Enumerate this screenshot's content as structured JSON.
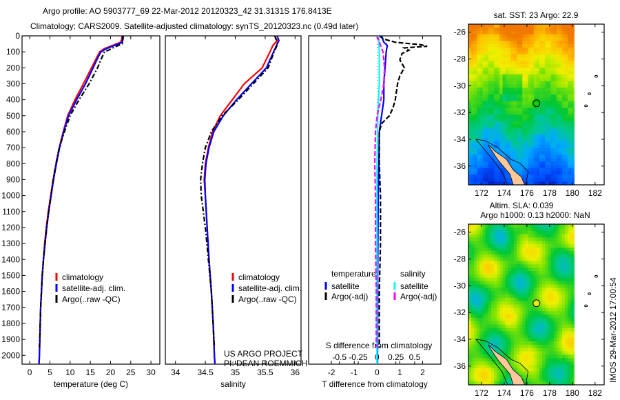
{
  "title": {
    "line1": "Argo profile: AO 5903777_69 22-Mar-2012 20120323_42 31.3131S 176.8413E",
    "line2": "Climatology: CARS2009. Satellite-adjusted climatology: synTS_20120323.nc (0.49d later)"
  },
  "colors": {
    "climatology": "#ff0000",
    "satellite": "#0000ff",
    "argo": "#000000",
    "sal_satellite": "#00ffff",
    "sal_argo": "#ff00ff",
    "land": "#ffc89a"
  },
  "chart_data": [
    {
      "type": "line",
      "id": "temperature",
      "xlabel": "temperature (deg C)",
      "ylabel": "",
      "xlim": [
        -1.9,
        32.2
      ],
      "ylim": [
        2055,
        0
      ],
      "xticks": [
        0,
        5,
        10,
        15,
        20,
        25,
        30
      ],
      "yticks": [
        0,
        100,
        200,
        300,
        400,
        500,
        600,
        700,
        800,
        900,
        1000,
        1100,
        1200,
        1300,
        1400,
        1500,
        1600,
        1700,
        1800,
        1900,
        2000
      ],
      "legend": [
        "climatology",
        "satellite-adj. clim.",
        "Argo(..raw -QC)"
      ],
      "series": [
        {
          "name": "climatology",
          "depth": [
            0,
            20,
            40,
            60,
            80,
            100,
            150,
            200,
            300,
            400,
            500,
            600,
            700,
            800,
            900,
            1000,
            1100,
            1200,
            1300,
            1400,
            1500,
            1600,
            1700,
            1800,
            1900,
            2000,
            2055
          ],
          "values": [
            22.8,
            22.8,
            22.5,
            20.5,
            18.5,
            17.3,
            16.3,
            15.3,
            13.3,
            11.2,
            9.4,
            8.3,
            7.3,
            6.5,
            5.8,
            5.2,
            4.6,
            4.1,
            3.7,
            3.4,
            3.1,
            2.9,
            2.7,
            2.6,
            2.5,
            2.4,
            2.3
          ]
        },
        {
          "name": "satellite-adj. clim.",
          "depth": [
            0,
            20,
            40,
            60,
            80,
            100,
            150,
            200,
            300,
            400,
            500,
            600,
            700,
            800,
            900,
            1000,
            1100,
            1200,
            1300,
            1400,
            1500,
            1600,
            1700,
            1800,
            1900,
            2000,
            2055
          ],
          "values": [
            23.2,
            23.1,
            22.9,
            21.0,
            19.0,
            17.6,
            16.6,
            15.7,
            13.8,
            11.6,
            9.6,
            8.4,
            7.4,
            6.6,
            5.9,
            5.3,
            4.7,
            4.2,
            3.8,
            3.4,
            3.1,
            2.9,
            2.7,
            2.6,
            2.5,
            2.4,
            2.3
          ]
        },
        {
          "name": "Argo(..raw -QC)",
          "depth": [
            0,
            50,
            70,
            90,
            100,
            150,
            200,
            300,
            400,
            500,
            600,
            700,
            800,
            900,
            1000,
            1100,
            1200,
            1300,
            1400,
            1500,
            1600,
            1700,
            1800,
            1900,
            1950
          ],
          "values": [
            23.0,
            22.9,
            21.0,
            19.5,
            18.5,
            17.6,
            16.8,
            14.7,
            12.2,
            10.0,
            8.6,
            7.3,
            6.5,
            5.8,
            5.3,
            4.7,
            4.2,
            3.8,
            3.4,
            3.1,
            2.9,
            2.7,
            2.6,
            2.5,
            2.4
          ]
        }
      ]
    },
    {
      "type": "line",
      "id": "salinity",
      "xlabel": "salinity",
      "xlim": [
        33.83,
        36.1
      ],
      "ylim": [
        2055,
        0
      ],
      "xticks": [
        34,
        34.5,
        35,
        35.5,
        36
      ],
      "legend": [
        "climatology",
        "satellite-adj. clim.",
        "Argo(..raw -QC)"
      ],
      "annotations": [
        "US ARGO PROJECT",
        "PI: DEAN ROEMMICH"
      ],
      "series": [
        {
          "name": "climatology",
          "depth": [
            0,
            30,
            60,
            100,
            200,
            300,
            400,
            500,
            600,
            700,
            800,
            900,
            1000,
            1200,
            1400,
            1600,
            1800,
            2000,
            2055
          ],
          "values": [
            35.66,
            35.7,
            35.63,
            35.58,
            35.45,
            35.15,
            34.95,
            34.75,
            34.62,
            34.55,
            34.5,
            34.48,
            34.5,
            34.53,
            34.56,
            34.6,
            34.63,
            34.65,
            34.66
          ]
        },
        {
          "name": "satellite-adj. clim.",
          "depth": [
            0,
            30,
            60,
            100,
            200,
            300,
            400,
            500,
            600,
            700,
            800,
            900,
            1000,
            1200,
            1400,
            1600,
            1800,
            2000,
            2055
          ],
          "values": [
            35.7,
            35.73,
            35.69,
            35.64,
            35.52,
            35.27,
            35.02,
            34.8,
            34.64,
            34.56,
            34.51,
            34.49,
            34.5,
            34.53,
            34.56,
            34.6,
            34.63,
            34.65,
            34.66
          ]
        },
        {
          "name": "Argo(..raw -QC)",
          "depth": [
            0,
            50,
            100,
            200,
            300,
            400,
            500,
            600,
            700,
            800,
            900,
            1000,
            1200,
            1400,
            1600,
            1800,
            1950
          ],
          "values": [
            35.66,
            35.71,
            35.65,
            35.55,
            35.3,
            35.05,
            34.78,
            34.6,
            34.5,
            34.45,
            34.42,
            34.43,
            34.5,
            34.55,
            34.6,
            34.63,
            34.65
          ]
        }
      ]
    },
    {
      "type": "line",
      "id": "difference",
      "xlabel": "T difference from climatology",
      "xlabel_top": "S difference from climatology",
      "xlim": [
        -3,
        2.8
      ],
      "ylim": [
        2055,
        0
      ],
      "xticks": [
        -2,
        -1,
        0,
        1,
        2
      ],
      "xticks_top": [
        -0.5,
        -0.25,
        0,
        0.25,
        0.5
      ],
      "legend_headers": [
        "temperature",
        "salinity"
      ],
      "legend": [
        "satellite",
        "Argo(-adj)",
        "satellite",
        "Argo(-adj)"
      ],
      "series": [
        {
          "name": "temperature satellite",
          "depth": [
            0,
            40,
            60,
            100,
            200,
            300,
            400,
            500,
            600,
            800,
            1000,
            1500,
            2055
          ],
          "values": [
            0.2,
            0.3,
            0.45,
            0.4,
            0.35,
            0.3,
            0.3,
            0.2,
            0.1,
            0.08,
            0.05,
            0.03,
            0.02
          ]
        },
        {
          "name": "temperature Argo(-adj)",
          "depth": [
            0,
            20,
            40,
            55,
            65,
            75,
            90,
            110,
            150,
            200,
            250,
            300,
            350,
            400,
            450,
            500,
            520,
            550,
            600,
            800,
            1000,
            1300,
            1600,
            1950
          ],
          "values": [
            0.1,
            0.3,
            0.8,
            1.9,
            2.2,
            1.2,
            1.4,
            1.1,
            1.0,
            1.2,
            1.0,
            0.9,
            0.85,
            0.8,
            0.7,
            0.55,
            0.4,
            0.2,
            0.1,
            0.1,
            0.15,
            0.15,
            0.1,
            0.1
          ]
        },
        {
          "name": "salinity satellite",
          "depth": [
            0,
            100,
            300,
            500,
            800,
            1200,
            2055
          ],
          "values": [
            0.02,
            0.03,
            0.03,
            0.01,
            0.0,
            0.0,
            0.0
          ]
        },
        {
          "name": "salinity Argo(-adj)",
          "depth": [
            0,
            100,
            200,
            300,
            400,
            500,
            600,
            800,
            1000,
            1300,
            1600,
            1950
          ],
          "values": [
            0.0,
            0.08,
            0.1,
            0.09,
            0.05,
            0.0,
            -0.02,
            -0.03,
            -0.02,
            -0.02,
            -0.01,
            -0.01
          ]
        }
      ]
    }
  ],
  "maps": [
    {
      "title": "sat. SST: 23 Argo: 22.9",
      "xticks": [
        172,
        174,
        176,
        178,
        180,
        182
      ],
      "yticks": [
        -26,
        -28,
        -30,
        -32,
        -34,
        -36
      ],
      "lon_range": [
        170.85,
        182.8
      ],
      "lat_range": [
        -37.4,
        -25.4
      ],
      "float_lon": 176.84,
      "float_lat": -31.31
    },
    {
      "title1": "Altim. SLA: 0.039",
      "title2": "Argo h1000: 0.13 h2000: NaN",
      "xticks": [
        172,
        174,
        176,
        178,
        180,
        182
      ],
      "yticks": [
        -26,
        -28,
        -30,
        -32,
        -34,
        -36
      ],
      "lon_range": [
        170.85,
        182.8
      ],
      "lat_range": [
        -37.4,
        -25.4
      ],
      "float_lon": 176.84,
      "float_lat": -31.31
    }
  ],
  "stamp": "IMOS 29-Mar-2012 17:00:54"
}
